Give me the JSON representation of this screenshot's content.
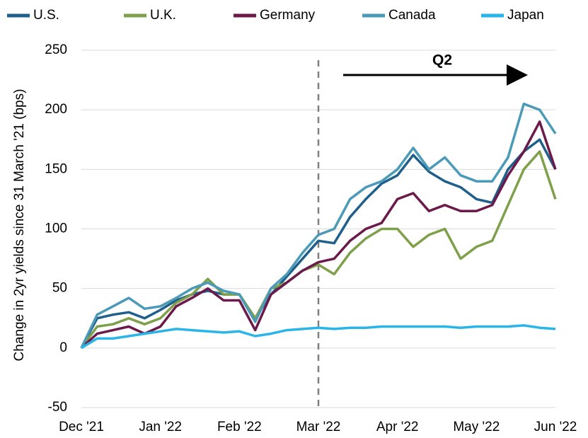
{
  "chart_data": {
    "type": "line",
    "y_label": "Change in 2yr yields since 31 March '21 (bps)",
    "annotation": "Q2",
    "ylim": [
      -50,
      250
    ],
    "yticks": [
      -50,
      0,
      50,
      100,
      150,
      200,
      250
    ],
    "xlim": [
      0,
      6
    ],
    "xticks": [
      {
        "value": 0,
        "label": "Dec '21"
      },
      {
        "value": 1,
        "label": "Jan '22"
      },
      {
        "value": 2,
        "label": "Feb '22"
      },
      {
        "value": 3,
        "label": "Mar '22"
      },
      {
        "value": 4,
        "label": "Apr '22"
      },
      {
        "value": 5,
        "label": "May '22"
      },
      {
        "value": 6,
        "label": "Jun '22"
      }
    ],
    "grid": true,
    "x": [
      0,
      0.2,
      0.4,
      0.6,
      0.8,
      1,
      1.2,
      1.4,
      1.6,
      1.8,
      2,
      2.2,
      2.4,
      2.6,
      2.8,
      3,
      3.2,
      3.4,
      3.6,
      3.8,
      4,
      4.2,
      4.4,
      4.6,
      4.8,
      5,
      5.2,
      5.4,
      5.6,
      5.8,
      6
    ],
    "series": [
      {
        "name": "U.S.",
        "color": "#1f5f8b",
        "values": [
          0,
          25,
          28,
          30,
          25,
          32,
          40,
          45,
          48,
          45,
          45,
          25,
          45,
          60,
          75,
          90,
          88,
          110,
          125,
          138,
          145,
          162,
          148,
          140,
          135,
          125,
          122,
          150,
          165,
          175,
          150
        ]
      },
      {
        "name": "U.K.",
        "color": "#7fa04a",
        "values": [
          0,
          18,
          20,
          25,
          20,
          25,
          38,
          45,
          58,
          45,
          45,
          25,
          50,
          55,
          65,
          70,
          62,
          80,
          92,
          100,
          100,
          85,
          95,
          100,
          75,
          85,
          90,
          120,
          150,
          165,
          125
        ]
      },
      {
        "name": "Germany",
        "color": "#6b1a4a",
        "values": [
          0,
          12,
          15,
          18,
          12,
          18,
          35,
          42,
          50,
          40,
          40,
          15,
          45,
          55,
          65,
          72,
          75,
          90,
          100,
          105,
          125,
          130,
          115,
          120,
          115,
          115,
          120,
          145,
          165,
          190,
          150
        ]
      },
      {
        "name": "Canada",
        "color": "#4a9ab8",
        "values": [
          0,
          28,
          35,
          42,
          33,
          35,
          42,
          50,
          55,
          48,
          45,
          22,
          50,
          62,
          80,
          95,
          100,
          125,
          135,
          140,
          150,
          168,
          150,
          160,
          145,
          140,
          140,
          160,
          205,
          200,
          180
        ]
      },
      {
        "name": "Japan",
        "color": "#29b5e8",
        "values": [
          0,
          8,
          8,
          10,
          12,
          14,
          16,
          15,
          14,
          13,
          14,
          10,
          12,
          15,
          16,
          17,
          16,
          17,
          17,
          18,
          18,
          18,
          18,
          18,
          17,
          18,
          18,
          18,
          19,
          17,
          16
        ]
      }
    ]
  }
}
